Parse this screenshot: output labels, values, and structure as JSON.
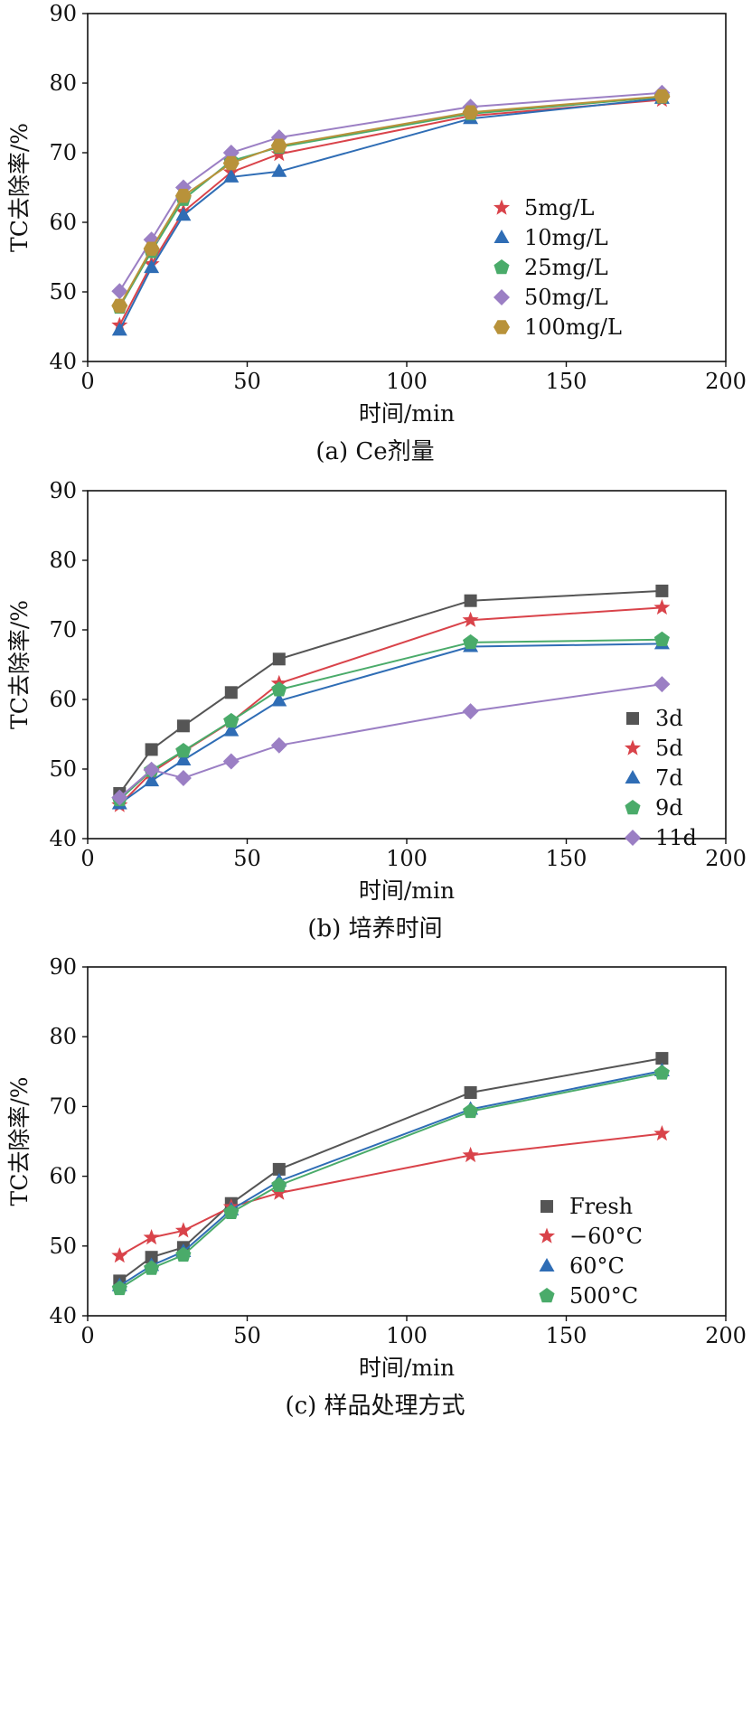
{
  "figure": {
    "panel_count": 3
  },
  "chart_data": [
    {
      "type": "line",
      "caption": "(a) Ce剂量",
      "xlabel": "时间/min",
      "ylabel": "TC去除率/%",
      "xlim": [
        0,
        200
      ],
      "ylim": [
        40,
        90
      ],
      "xticks": [
        0,
        50,
        100,
        150,
        200
      ],
      "yticks": [
        40,
        50,
        60,
        70,
        80,
        90
      ],
      "legend_position": "right-middle",
      "x": [
        10,
        20,
        30,
        45,
        60,
        120,
        180
      ],
      "series": [
        {
          "name": "5mg/L",
          "marker": "star",
          "color": "#d9434a",
          "values": [
            45.2,
            54.0,
            61.5,
            67.2,
            69.8,
            75.3,
            77.6
          ]
        },
        {
          "name": "10mg/L",
          "marker": "triangle",
          "color": "#2f6db5",
          "values": [
            44.5,
            53.5,
            61.0,
            66.5,
            67.3,
            74.9,
            77.8
          ]
        },
        {
          "name": "25mg/L",
          "marker": "pentagon",
          "color": "#4aab6a",
          "values": [
            47.8,
            55.8,
            63.3,
            68.8,
            70.8,
            75.6,
            78.0
          ]
        },
        {
          "name": "50mg/L",
          "marker": "diamond",
          "color": "#9b7fc4",
          "values": [
            50.1,
            57.5,
            65.0,
            70.0,
            72.2,
            76.6,
            78.6
          ]
        },
        {
          "name": "100mg/L",
          "marker": "hexagon",
          "color": "#b8923a",
          "values": [
            48.0,
            56.2,
            63.8,
            68.5,
            71.0,
            75.8,
            78.1
          ]
        }
      ]
    },
    {
      "type": "line",
      "caption": "(b) 培养时间",
      "xlabel": "时间/min",
      "ylabel": "TC去除率/%",
      "xlim": [
        0,
        200
      ],
      "ylim": [
        40,
        90
      ],
      "xticks": [
        0,
        50,
        100,
        150,
        200
      ],
      "yticks": [
        40,
        50,
        60,
        70,
        80,
        90
      ],
      "legend_position": "bottom-right",
      "x": [
        10,
        20,
        30,
        45,
        60,
        120,
        180
      ],
      "series": [
        {
          "name": "3d",
          "marker": "square",
          "color": "#555555",
          "values": [
            46.5,
            52.8,
            56.2,
            61.0,
            65.8,
            74.2,
            75.6
          ]
        },
        {
          "name": "5d",
          "marker": "star",
          "color": "#d9434a",
          "values": [
            44.8,
            49.5,
            52.5,
            56.8,
            62.3,
            71.4,
            73.2
          ]
        },
        {
          "name": "7d",
          "marker": "triangle",
          "color": "#2f6db5",
          "values": [
            45.0,
            48.3,
            51.3,
            55.5,
            59.8,
            67.6,
            68.0
          ]
        },
        {
          "name": "9d",
          "marker": "pentagon",
          "color": "#4aab6a",
          "values": [
            45.6,
            49.8,
            52.6,
            56.9,
            61.4,
            68.2,
            68.6
          ]
        },
        {
          "name": "11d",
          "marker": "diamond",
          "color": "#9b7fc4",
          "values": [
            45.9,
            49.9,
            48.7,
            51.1,
            53.4,
            58.3,
            62.2
          ]
        }
      ]
    },
    {
      "type": "line",
      "caption": "(c) 样品处理方式",
      "xlabel": "时间/min",
      "ylabel": "TC去除率/%",
      "xlim": [
        0,
        200
      ],
      "ylim": [
        40,
        90
      ],
      "xticks": [
        0,
        50,
        100,
        150,
        200
      ],
      "yticks": [
        40,
        50,
        60,
        70,
        80,
        90
      ],
      "legend_position": "bottom-right",
      "x": [
        10,
        20,
        30,
        45,
        60,
        120,
        180
      ],
      "series": [
        {
          "name": "Fresh",
          "marker": "square",
          "color": "#555555",
          "values": [
            45.0,
            48.4,
            49.8,
            56.1,
            61.0,
            72.0,
            76.9
          ]
        },
        {
          "name": "−60°C",
          "marker": "star",
          "color": "#d9434a",
          "values": [
            48.6,
            51.2,
            52.2,
            55.6,
            57.6,
            63.0,
            66.1
          ]
        },
        {
          "name": "60°C",
          "marker": "triangle",
          "color": "#2f6db5",
          "values": [
            44.3,
            47.2,
            49.2,
            55.2,
            59.3,
            69.6,
            75.1
          ]
        },
        {
          "name": "500°C",
          "marker": "pentagon",
          "color": "#4aab6a",
          "values": [
            43.9,
            46.8,
            48.7,
            54.8,
            58.7,
            69.3,
            74.8
          ]
        }
      ]
    }
  ]
}
